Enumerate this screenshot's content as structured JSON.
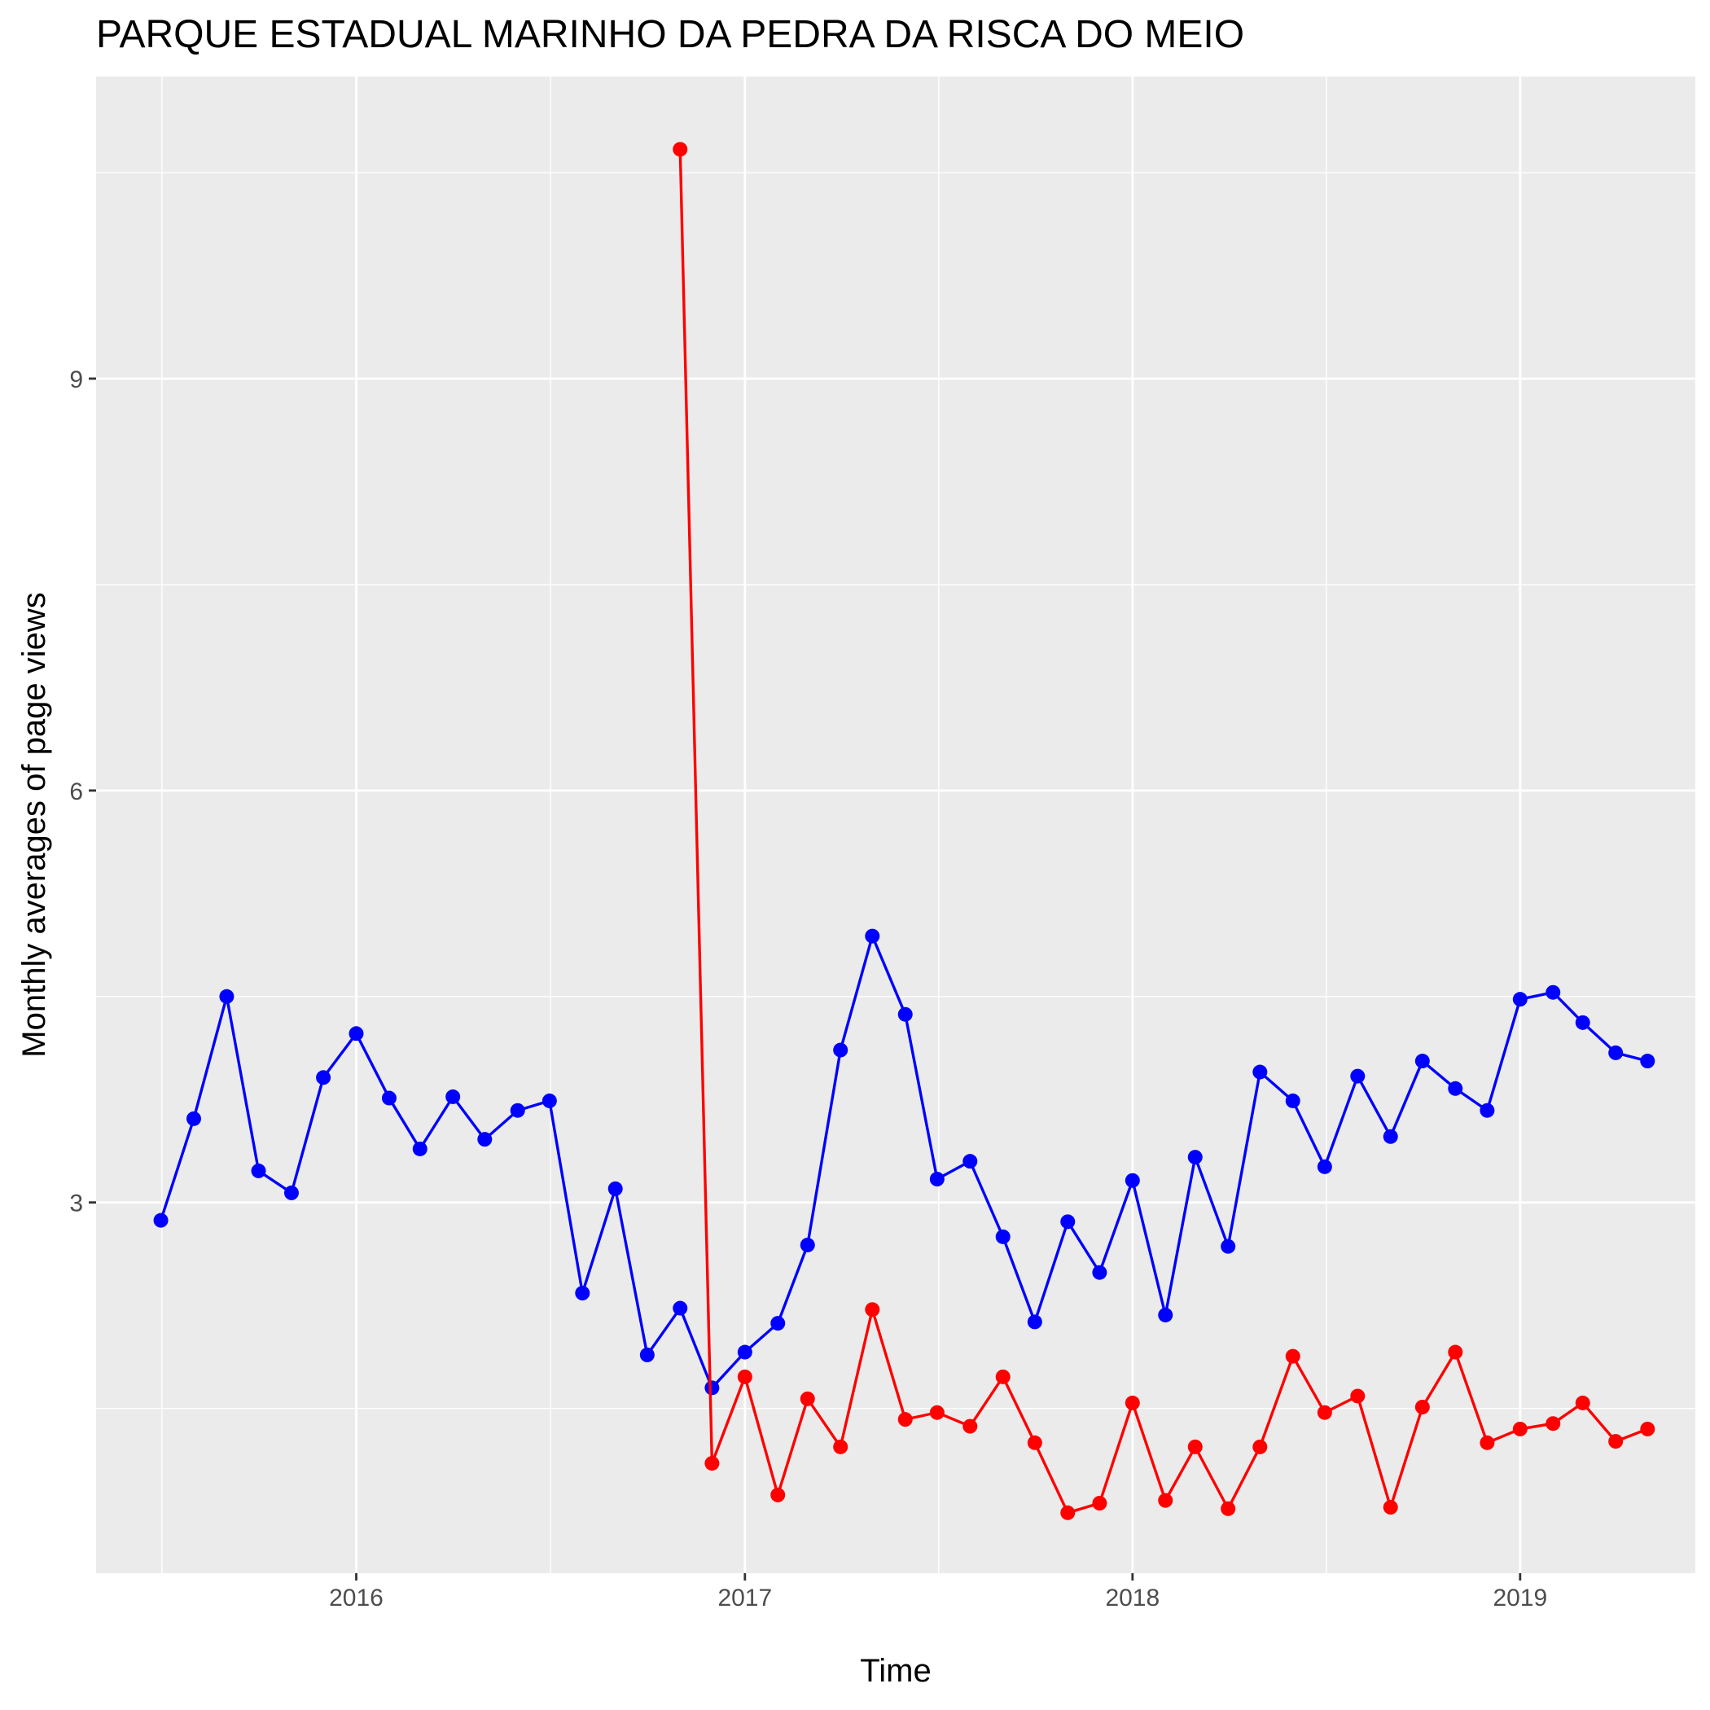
{
  "chart_data": {
    "type": "line",
    "title": "PARQUE ESTADUAL MARINHO DA PEDRA DA RISCA DO MEIO",
    "xlabel": "Time",
    "ylabel": "Monthly averages of page views",
    "xlim": [
      "2015-05-01",
      "2019-06-15"
    ],
    "ylim": [
      0.3,
      11.2
    ],
    "x_tick_values": [
      "2016-01-01",
      "2017-01-01",
      "2018-01-01",
      "2019-01-01"
    ],
    "x_tick_labels": [
      "2016",
      "2017",
      "2018",
      "2019"
    ],
    "y_ticks": [
      3,
      6,
      9
    ],
    "y_minor_ticks": [
      1.5,
      4.5,
      7.5,
      10.5
    ],
    "grid": true,
    "background": "#ebebeb",
    "series": [
      {
        "color": "#0000ff",
        "x": [
          "2015-07-01",
          "2015-08-01",
          "2015-09-01",
          "2015-10-01",
          "2015-11-01",
          "2015-12-01",
          "2016-01-01",
          "2016-02-01",
          "2016-03-01",
          "2016-04-01",
          "2016-05-01",
          "2016-06-01",
          "2016-07-01",
          "2016-08-01",
          "2016-09-01",
          "2016-10-01",
          "2016-11-01",
          "2016-12-01",
          "2017-01-01",
          "2017-02-01",
          "2017-03-01",
          "2017-04-01",
          "2017-05-01",
          "2017-06-01",
          "2017-07-01",
          "2017-08-01",
          "2017-09-01",
          "2017-10-01",
          "2017-11-01",
          "2017-12-01",
          "2018-01-01",
          "2018-02-01",
          "2018-03-01",
          "2018-04-01",
          "2018-05-01",
          "2018-06-01",
          "2018-07-01",
          "2018-08-01",
          "2018-09-01",
          "2018-10-01",
          "2018-11-01",
          "2018-12-01",
          "2019-01-01",
          "2019-02-01",
          "2019-03-01",
          "2019-04-01",
          "2019-05-01"
        ],
        "y": [
          2.87,
          3.61,
          4.5,
          3.23,
          3.07,
          3.91,
          4.23,
          3.76,
          3.39,
          3.77,
          3.46,
          3.67,
          3.74,
          2.34,
          3.1,
          1.89,
          2.23,
          1.65,
          1.91,
          2.12,
          2.69,
          4.11,
          4.94,
          4.37,
          3.17,
          3.3,
          2.75,
          2.13,
          2.86,
          2.49,
          3.16,
          2.18,
          3.33,
          2.68,
          3.95,
          3.74,
          3.26,
          3.92,
          3.48,
          4.03,
          3.83,
          3.67,
          4.48,
          4.53,
          4.31,
          4.09,
          4.03
        ]
      },
      {
        "color": "#ff0000",
        "x": [
          "2016-11-01",
          "2016-12-01",
          "2017-01-01",
          "2017-02-01",
          "2017-03-01",
          "2017-04-01",
          "2017-05-01",
          "2017-06-01",
          "2017-07-01",
          "2017-08-01",
          "2017-09-01",
          "2017-10-01",
          "2017-11-01",
          "2017-12-01",
          "2018-01-01",
          "2018-02-01",
          "2018-03-01",
          "2018-04-01",
          "2018-05-01",
          "2018-06-01",
          "2018-07-01",
          "2018-08-01",
          "2018-09-01",
          "2018-10-01",
          "2018-11-01",
          "2018-12-01",
          "2019-01-01",
          "2019-02-01",
          "2019-03-01",
          "2019-04-01",
          "2019-05-01"
        ],
        "y": [
          10.67,
          1.1,
          1.73,
          0.87,
          1.57,
          1.22,
          2.22,
          1.42,
          1.47,
          1.37,
          1.73,
          1.25,
          0.74,
          0.81,
          1.54,
          0.83,
          1.22,
          0.77,
          1.22,
          1.88,
          1.47,
          1.59,
          0.78,
          1.51,
          1.91,
          1.25,
          1.35,
          1.39,
          1.54,
          1.26,
          1.35
        ]
      }
    ]
  }
}
